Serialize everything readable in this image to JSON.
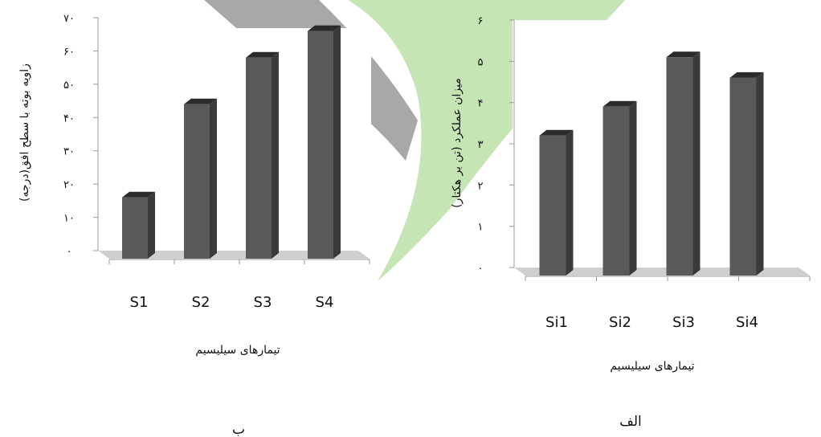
{
  "colors": {
    "bar_front": "#595959",
    "bar_top": "#2b2b2b",
    "bar_side": "#3a3a3a",
    "watermark_gray": "#a8a8a8",
    "watermark_green": "#c6e5b5",
    "axis": "#999999"
  },
  "chart_data": [
    {
      "type": "bar",
      "panel_label": "ب",
      "categories": [
        "S1",
        "S2",
        "S3",
        "S4"
      ],
      "values": [
        16,
        44,
        58,
        66
      ],
      "xlabel": "تیمارهای سیلیسیم",
      "ylabel": "زاویه بوته با سطح افق(درجه)",
      "ylim": [
        0,
        70
      ],
      "yticks": [
        "۰",
        "۱۰",
        "۲۰",
        "۳۰",
        "۴۰",
        "۵۰",
        "۶۰",
        "۷۰"
      ],
      "grid": false
    },
    {
      "type": "bar",
      "panel_label": "الف",
      "categories": [
        "Si1",
        "Si2",
        "Si3",
        "Si4"
      ],
      "values": [
        3.2,
        3.9,
        5.1,
        4.6
      ],
      "xlabel": "تیمارهای سیلیسیم",
      "ylabel": "میزان عملکرد (تن بر هکتار)",
      "ylim": [
        0,
        6
      ],
      "yticks": [
        "۰",
        "۱",
        "۲",
        "۳",
        "۴",
        "۵",
        "۶"
      ],
      "grid": false
    }
  ]
}
